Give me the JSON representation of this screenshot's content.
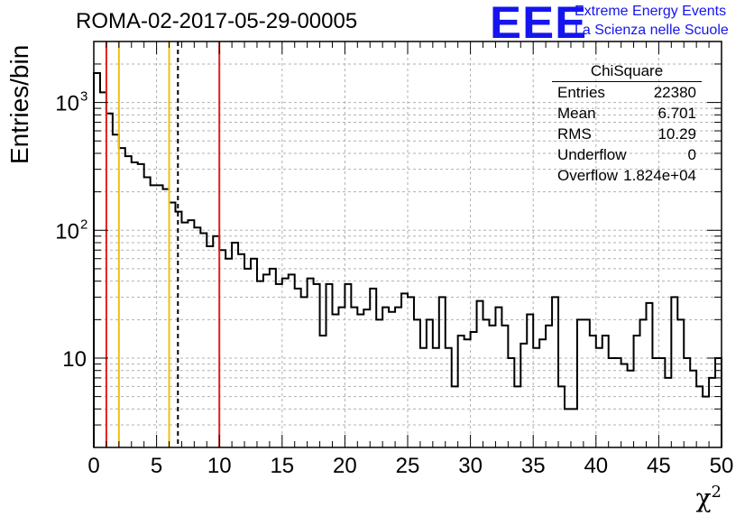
{
  "title": "ROMA-02-2017-05-29-00005",
  "logo": {
    "mark": "EEE",
    "line1": "Extreme Energy Events",
    "line2": "La Scienza nelle Scuole"
  },
  "stats": {
    "name": "ChiSquare",
    "rows": [
      {
        "label": "Entries",
        "value": "22380"
      },
      {
        "label": "Mean",
        "value": "6.701"
      },
      {
        "label": "RMS",
        "value": "10.29"
      },
      {
        "label": "Underflow",
        "value": "0"
      },
      {
        "label": "Overflow",
        "value": "1.824e+04"
      }
    ]
  },
  "chart_data": {
    "type": "histogram",
    "title": "ROMA-02-2017-05-29-00005",
    "xlabel": "χ",
    "xlabel_sup": "2",
    "ylabel": "Entries/bin",
    "xlim": [
      0,
      50
    ],
    "ylim": [
      2,
      3000
    ],
    "yscale": "log",
    "grid": true,
    "bin_width": 0.5,
    "x_ticks": [
      0,
      5,
      10,
      15,
      20,
      25,
      30,
      35,
      40,
      45,
      50
    ],
    "y_ticks": [
      {
        "value": 10,
        "label": "10"
      },
      {
        "value": 100,
        "label": "10",
        "exp": "2"
      },
      {
        "value": 1000,
        "label": "10",
        "exp": "3"
      }
    ],
    "values": [
      1700,
      1200,
      820,
      560,
      440,
      380,
      340,
      330,
      260,
      225,
      225,
      210,
      165,
      140,
      115,
      120,
      105,
      95,
      75,
      90,
      70,
      60,
      80,
      65,
      50,
      60,
      40,
      45,
      50,
      38,
      42,
      45,
      35,
      30,
      42,
      38,
      15,
      38,
      22,
      25,
      38,
      25,
      22,
      24,
      35,
      20,
      25,
      23,
      25,
      32,
      30,
      20,
      12,
      20,
      12,
      30,
      12,
      6,
      15,
      14,
      16,
      28,
      20,
      18,
      25,
      18,
      10,
      6,
      13,
      22,
      12,
      14,
      18,
      30,
      6,
      4,
      4,
      20,
      20,
      15,
      12,
      15,
      10,
      10,
      9,
      8,
      15,
      20,
      27,
      10,
      10,
      7,
      30,
      20,
      10,
      8,
      6,
      5,
      7,
      10
    ],
    "vertical_lines": [
      {
        "x": 1,
        "color": "#e0201a",
        "style": "solid"
      },
      {
        "x": 2,
        "color": "#f0c010",
        "style": "solid"
      },
      {
        "x": 6,
        "color": "#f0c010",
        "style": "solid"
      },
      {
        "x": 6.701,
        "color": "#000000",
        "style": "dashed"
      },
      {
        "x": 10,
        "color": "#e0201a",
        "style": "solid"
      }
    ]
  }
}
